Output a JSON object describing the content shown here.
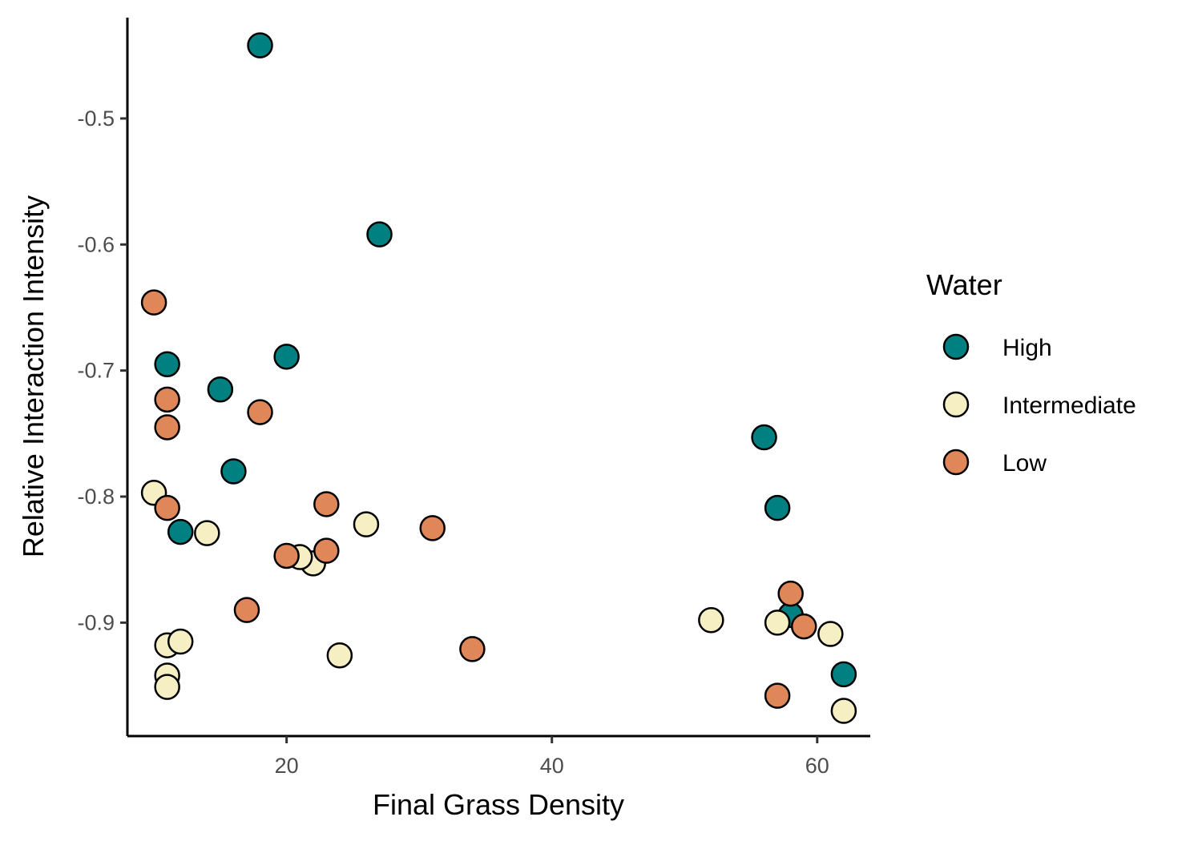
{
  "chart_data": {
    "type": "scatter",
    "title": "",
    "xlabel": "Final Grass Density",
    "ylabel": "Relative Interaction Intensity",
    "xlim": [
      8,
      64
    ],
    "ylim": [
      -0.99,
      -0.42
    ],
    "x_ticks": [
      20,
      40,
      60
    ],
    "y_ticks": [
      -0.5,
      -0.6,
      -0.7,
      -0.8,
      -0.9
    ],
    "x_tick_labels": [
      "20",
      "40",
      "60"
    ],
    "y_tick_labels": [
      "-0.5",
      "-0.6",
      "-0.7",
      "-0.8",
      "-0.9"
    ],
    "grid": false,
    "legend": {
      "title": "Water",
      "position": "right"
    },
    "series": [
      {
        "name": "High",
        "color": "#008080",
        "points": [
          {
            "x": 18,
            "y": -0.442
          },
          {
            "x": 27,
            "y": -0.592
          },
          {
            "x": 11,
            "y": -0.695
          },
          {
            "x": 20,
            "y": -0.689
          },
          {
            "x": 15,
            "y": -0.715
          },
          {
            "x": 16,
            "y": -0.78
          },
          {
            "x": 12,
            "y": -0.828
          },
          {
            "x": 56,
            "y": -0.753
          },
          {
            "x": 57,
            "y": -0.809
          },
          {
            "x": 58,
            "y": -0.894
          },
          {
            "x": 62,
            "y": -0.941
          }
        ]
      },
      {
        "name": "Intermediate",
        "color": "#F5EFC3",
        "points": [
          {
            "x": 10,
            "y": -0.797
          },
          {
            "x": 14,
            "y": -0.829
          },
          {
            "x": 26,
            "y": -0.822
          },
          {
            "x": 22,
            "y": -0.853
          },
          {
            "x": 21,
            "y": -0.848
          },
          {
            "x": 11,
            "y": -0.918
          },
          {
            "x": 12,
            "y": -0.915
          },
          {
            "x": 11,
            "y": -0.942
          },
          {
            "x": 11,
            "y": -0.951
          },
          {
            "x": 24,
            "y": -0.926
          },
          {
            "x": 52,
            "y": -0.898
          },
          {
            "x": 57,
            "y": -0.9
          },
          {
            "x": 61,
            "y": -0.909
          },
          {
            "x": 62,
            "y": -0.97
          }
        ]
      },
      {
        "name": "Low",
        "color": "#E0875A",
        "points": [
          {
            "x": 10,
            "y": -0.646
          },
          {
            "x": 11,
            "y": -0.723
          },
          {
            "x": 11,
            "y": -0.745
          },
          {
            "x": 18,
            "y": -0.733
          },
          {
            "x": 11,
            "y": -0.809
          },
          {
            "x": 23,
            "y": -0.806
          },
          {
            "x": 31,
            "y": -0.825
          },
          {
            "x": 20,
            "y": -0.847
          },
          {
            "x": 23,
            "y": -0.843
          },
          {
            "x": 17,
            "y": -0.89
          },
          {
            "x": 34,
            "y": -0.921
          },
          {
            "x": 58,
            "y": -0.877
          },
          {
            "x": 59,
            "y": -0.903
          },
          {
            "x": 57,
            "y": -0.958
          }
        ]
      }
    ]
  }
}
